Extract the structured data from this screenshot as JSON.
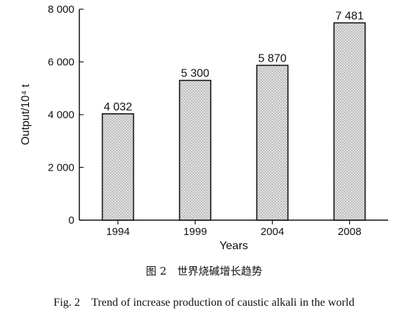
{
  "chart_data": {
    "type": "bar",
    "categories": [
      "1994",
      "1999",
      "2004",
      "2008"
    ],
    "values": [
      4032,
      5300,
      5870,
      7481
    ],
    "data_labels": [
      "4 032",
      "5 300",
      "5 870",
      "7 481"
    ],
    "xlabel": "Years",
    "ylabel": "Output/10⁴ t",
    "ylim": [
      0,
      8000
    ],
    "yticks": [
      0,
      2000,
      4000,
      6000,
      8000
    ],
    "ytick_labels": [
      "0",
      "2 000",
      "4 000",
      "6 000",
      "8 000"
    ],
    "grid": false,
    "legend": "none",
    "bar_fill": "#d6d6d6",
    "bar_stroke": "#111111"
  },
  "caption_cn": "图 2　世界烧碱增长趋势",
  "caption_en": "Fig. 2　Trend of increase production of caustic alkali in the world"
}
